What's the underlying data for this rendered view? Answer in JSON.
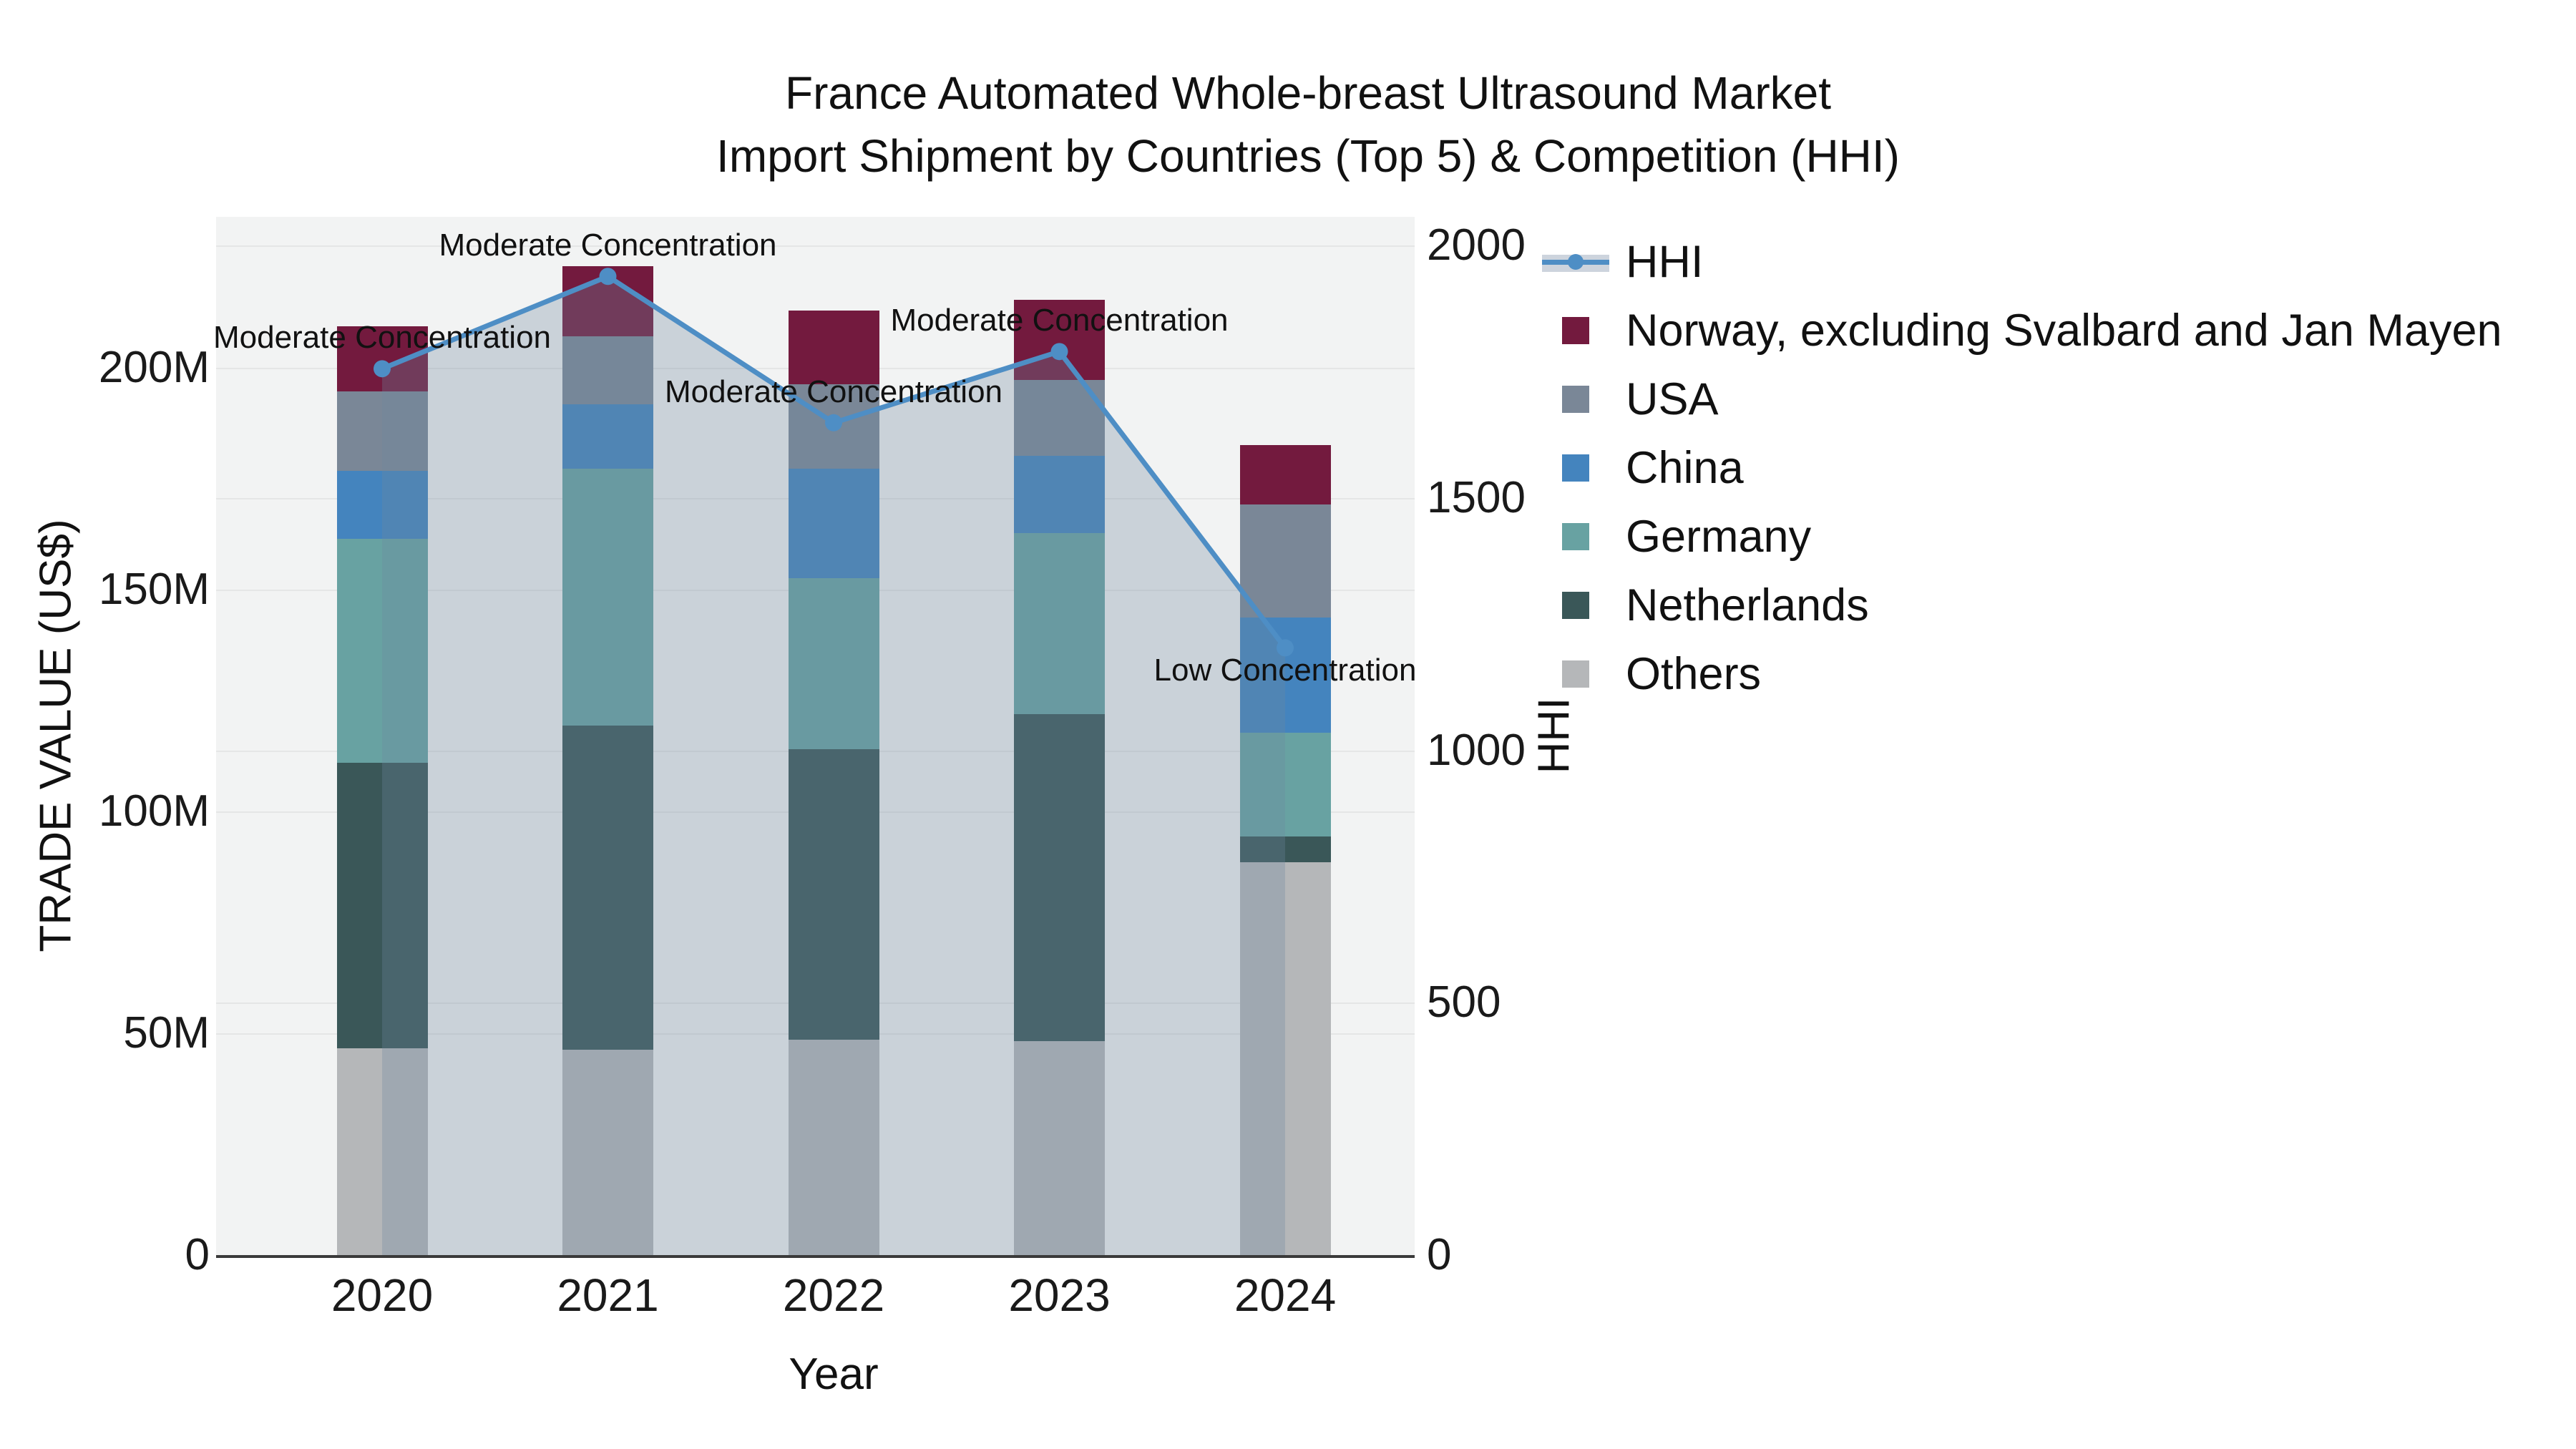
{
  "header": {
    "title_line1": "France Automated Whole-breast Ultrasound Market",
    "title_line2": "Import Shipment by Countries (Top 5) & Competition (HHI)"
  },
  "chart_data": {
    "type": "stacked-bar+line",
    "title": "France Automated Whole-breast Ultrasound Market\nImport Shipment by Countries (Top 5) & Competition (HHI)",
    "categories": [
      "2020",
      "2021",
      "2022",
      "2023",
      "2024"
    ],
    "value_unit": "M US$",
    "series": [
      {
        "name": "Others",
        "color": "#B5B7B9",
        "values": [
          46.6,
          46.3,
          48.6,
          48.2,
          88.5
        ]
      },
      {
        "name": "Netherlands",
        "color": "#3A5758",
        "values": [
          64.4,
          73.0,
          65.5,
          73.8,
          5.9
        ]
      },
      {
        "name": "Germany",
        "color": "#68A2A2",
        "values": [
          50.5,
          57.9,
          38.4,
          40.8,
          23.3
        ]
      },
      {
        "name": "China",
        "color": "#4484BE",
        "values": [
          15.2,
          14.5,
          24.7,
          17.4,
          26.0
        ]
      },
      {
        "name": "USA",
        "color": "#7A8797",
        "values": [
          18.0,
          15.3,
          19.1,
          17.1,
          25.4
        ]
      },
      {
        "name": "Norway, excluding Svalbard and Jan Mayen",
        "color": "#731A3E",
        "values": [
          14.7,
          15.9,
          16.6,
          18.0,
          13.5
        ]
      }
    ],
    "line": {
      "name": "HHI",
      "color": "#4E8EC5",
      "fill_color": "rgba(110,135,160,0.30)",
      "yaxis": "right",
      "values": [
        1756,
        1939,
        1649,
        1790,
        1203
      ]
    },
    "annotations": [
      {
        "text": "Moderate Concentration",
        "category": "2020",
        "placement": "above"
      },
      {
        "text": "Moderate Concentration",
        "category": "2021",
        "placement": "above"
      },
      {
        "text": "Moderate Concentration",
        "category": "2022",
        "placement": "above"
      },
      {
        "text": "Moderate Concentration",
        "category": "2023",
        "placement": "above"
      },
      {
        "text": "Low Concentration",
        "category": "2024",
        "placement": "below"
      }
    ],
    "xlabel": "Year",
    "ylabel_left": "TRADE VALUE (US$)",
    "ylabel_right": "HHI",
    "ylim_left": [
      0,
      234
    ],
    "ylim_right": [
      0,
      2057
    ],
    "yticks_left": [
      {
        "v": 0,
        "label": "0"
      },
      {
        "v": 50,
        "label": "50M"
      },
      {
        "v": 100,
        "label": "100M"
      },
      {
        "v": 150,
        "label": "150M"
      },
      {
        "v": 200,
        "label": "200M"
      }
    ],
    "yticks_right": [
      {
        "v": 0,
        "label": "0"
      },
      {
        "v": 500,
        "label": "500"
      },
      {
        "v": 1000,
        "label": "1000"
      },
      {
        "v": 1500,
        "label": "1500"
      },
      {
        "v": 2000,
        "label": "2000"
      }
    ],
    "grid": true,
    "plot_bg": "#f2f3f3",
    "legend_position": "right"
  }
}
